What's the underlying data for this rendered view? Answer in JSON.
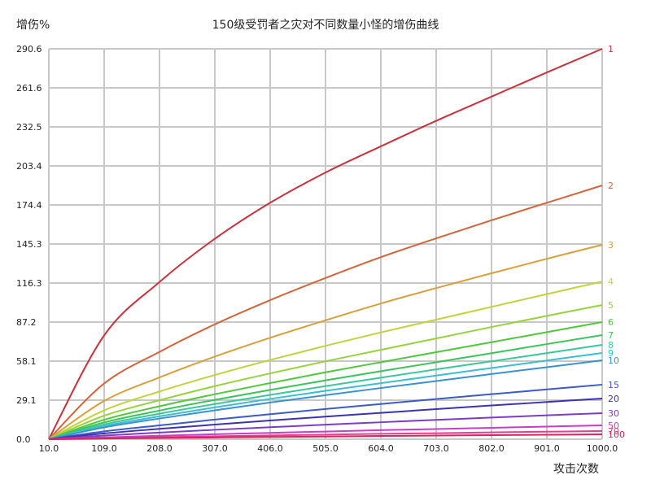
{
  "chart_data": {
    "type": "line",
    "title": "150级受罚者之灾对不同数量小怪的增伤曲线",
    "xlabel": "攻击次数",
    "ylabel": "增伤%",
    "xlim": [
      10.0,
      1000.0
    ],
    "ylim": [
      0.0,
      290.6
    ],
    "grid": true,
    "legend_position": "right-end-labels",
    "x_ticks": [
      "10.0",
      "109.0",
      "208.0",
      "307.0",
      "406.0",
      "505.0",
      "604.0",
      "703.0",
      "802.0",
      "901.0",
      "1000.0"
    ],
    "y_ticks": [
      "0.0",
      "29.1",
      "58.1",
      "87.2",
      "116.3",
      "145.3",
      "174.4",
      "203.4",
      "232.5",
      "261.6",
      "290.6"
    ],
    "x": [
      10,
      109,
      208,
      307,
      406,
      505,
      604,
      703,
      802,
      901,
      1000
    ],
    "series": [
      {
        "name": "1",
        "color": "#c8323c",
        "values": [
          0,
          77.3,
          117.0,
          149.2,
          176.0,
          198.5,
          218.0,
          237.0,
          255.0,
          273.0,
          290.6
        ]
      },
      {
        "name": "2",
        "color": "#d2643c",
        "values": [
          0,
          41.5,
          65.0,
          85.5,
          103.5,
          120.0,
          135.5,
          149.5,
          163.0,
          176.0,
          188.9
        ]
      },
      {
        "name": "3",
        "color": "#d7a03c",
        "values": [
          0,
          28.5,
          46.0,
          61.5,
          75.5,
          88.5,
          101.0,
          112.5,
          123.5,
          134.3,
          144.7
        ]
      },
      {
        "name": "4",
        "color": "#c3d23c",
        "values": [
          0,
          21.5,
          35.5,
          47.8,
          59.0,
          69.5,
          79.5,
          89.0,
          98.5,
          108.0,
          117.4
        ]
      },
      {
        "name": "5",
        "color": "#96d23c",
        "values": [
          0,
          17.5,
          29.0,
          39.5,
          49.0,
          58.0,
          66.5,
          75.0,
          83.5,
          91.8,
          99.9
        ]
      },
      {
        "name": "6",
        "color": "#50c83c",
        "values": [
          0,
          14.5,
          24.5,
          33.5,
          41.8,
          49.8,
          57.3,
          64.8,
          72.2,
          79.7,
          87.2
        ]
      },
      {
        "name": "7",
        "color": "#3cc35a",
        "values": [
          0,
          12.5,
          21.3,
          29.3,
          36.7,
          43.8,
          50.6,
          57.3,
          64.0,
          70.8,
          77.5
        ]
      },
      {
        "name": "8",
        "color": "#3cc896",
        "values": [
          0,
          11.0,
          19.0,
          26.2,
          33.0,
          39.5,
          45.8,
          52.0,
          58.0,
          64.1,
          70.2
        ]
      },
      {
        "name": "9",
        "color": "#3cbed2",
        "values": [
          0,
          9.8,
          17.0,
          23.7,
          30.0,
          36.0,
          41.7,
          47.4,
          53.0,
          58.6,
          64.2
        ]
      },
      {
        "name": "10",
        "color": "#3c91d2",
        "values": [
          0,
          8.8,
          15.4,
          21.5,
          27.3,
          32.8,
          38.1,
          43.3,
          48.5,
          53.6,
          58.7
        ]
      },
      {
        "name": "15",
        "color": "#3c5ac8",
        "values": [
          0,
          5.8,
          10.3,
          14.6,
          18.6,
          22.5,
          26.2,
          29.9,
          33.5,
          37.1,
          40.6
        ]
      },
      {
        "name": "20",
        "color": "#3c32b4",
        "values": [
          0,
          4.3,
          7.7,
          10.9,
          13.9,
          16.8,
          19.6,
          22.4,
          25.1,
          27.7,
          30.3
        ]
      },
      {
        "name": "30",
        "color": "#7d3cc8",
        "values": [
          0,
          2.7,
          4.9,
          7.0,
          8.9,
          10.8,
          12.6,
          14.4,
          16.1,
          17.8,
          19.4
        ]
      },
      {
        "name": "50",
        "color": "#c83cc8",
        "values": [
          0,
          1.4,
          2.6,
          3.7,
          4.7,
          5.7,
          6.7,
          7.6,
          8.5,
          9.4,
          10.3
        ]
      },
      {
        "name": "70",
        "color": "#e63c96",
        "values": [
          0,
          0.8,
          1.5,
          2.2,
          2.8,
          3.4,
          4.0,
          4.5,
          5.1,
          5.6,
          6.1
        ]
      },
      {
        "name": "100",
        "color": "#d2285a",
        "values": [
          0,
          0.5,
          0.9,
          1.3,
          1.7,
          2.0,
          2.4,
          2.7,
          3.0,
          3.3,
          3.6
        ]
      }
    ]
  },
  "labels": {
    "title": "150级受罚者之灾对不同数量小怪的增伤曲线",
    "ylabel": "增伤%",
    "xlabel": "攻击次数"
  },
  "colors": {
    "grid": "#c8c8c8",
    "background": "#ffffff",
    "text": "#222222"
  }
}
